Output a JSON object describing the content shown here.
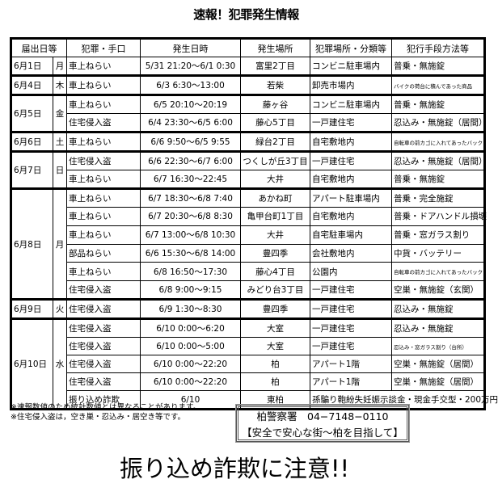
{
  "title": "速報！犯罪発生情報",
  "headers": [
    "届出日等",
    "犯罪・手口",
    "発生日時",
    "発生場所",
    "犯罪場所・分類等",
    "犯行手段方法等"
  ],
  "groups": [
    {
      "date": "6月1日",
      "day": "月",
      "rows": [
        [
          "車上ねらい",
          "5/31 21:20～6/1 0:30",
          "富里2丁目",
          "コンビニ駐車場内",
          "普乗・無施錠"
        ]
      ]
    },
    {
      "date": "6月4日",
      "day": "木",
      "rows": [
        [
          "車上ねらい",
          "6/3 6:30～13:00",
          "若柴",
          "卸売市場内",
          "バイクの荷台に積んであった商品"
        ]
      ]
    },
    {
      "date": "6月5日",
      "day": "金",
      "rows": [
        [
          "車上ねらい",
          "6/5 20:10～20:19",
          "藤ヶ谷",
          "コンビニ駐車場内",
          "普乗・無施錠"
        ],
        [
          "住宅侵入盗",
          "6/4 23:30～6/5 6:00",
          "藤心5丁目",
          "一戸建住宅",
          "忍込み・無施錠（居間）"
        ]
      ]
    },
    {
      "date": "6月6日",
      "day": "土",
      "rows": [
        [
          "車上ねらい",
          "6/6 9:50～6/5 9:55",
          "緑台2丁目",
          "自宅敷地内",
          "自転車の前カゴに入れてあったバック"
        ]
      ]
    },
    {
      "date": "6月7日",
      "day": "日",
      "rows": [
        [
          "住宅侵入盗",
          "6/6 22:30～6/7 6:00",
          "つくしが丘3丁目",
          "一戸建住宅",
          "忍込み・無施錠（居間）"
        ],
        [
          "車上ねらい",
          "6/7 16:30～22:45",
          "大井",
          "自宅敷地内",
          "普乗・無施錠"
        ]
      ]
    },
    {
      "date": "6月8日",
      "day": "月",
      "rows": [
        [
          "車上ねらい",
          "6/7 18:30～6/8 7:40",
          "あかね町",
          "アパート駐車場内",
          "普乗・完全施錠"
        ],
        [
          "車上ねらい",
          "6/7 20:30～6/8 8:30",
          "亀甲台町1丁目",
          "自宅敷地内",
          "普乗・ドアハンドル損壊"
        ],
        [
          "車上ねらい",
          "6/7 13:00～6/8 10:30",
          "大井",
          "自宅駐車場内",
          "普乗・窓ガラス割り"
        ],
        [
          "部品ねらい",
          "6/6 15:30～6/8 14:00",
          "豊四季",
          "会社敷地内",
          "中貨・バッテリー"
        ],
        [
          "車上ねらい",
          "6/8 16:50～17:30",
          "藤心4丁目",
          "公園内",
          "自転車の前カゴに入れてあったバック"
        ],
        [
          "住宅侵入盗",
          "6/8 9:00～9:15",
          "みどり台3丁目",
          "一戸建住宅",
          "空巣・無施錠（玄関）"
        ]
      ]
    },
    {
      "date": "6月9日",
      "day": "火",
      "rows": [
        [
          "住宅侵入盗",
          "6/9 1:30～8:30",
          "豊四季",
          "一戸建住宅",
          "忍込み・無施錠"
        ]
      ]
    },
    {
      "date": "6月10日",
      "day": "水",
      "rows": [
        [
          "住宅侵入盗",
          "6/10 0:00～6:20",
          "大室",
          "一戸建住宅",
          "忍込み・無施錠"
        ],
        [
          "住宅侵入盗",
          "6/10 0:00～5:00",
          "大室",
          "一戸建住宅",
          "忍込み・窓ガラス割り（台所）"
        ],
        [
          "住宅侵入盗",
          "6/10 0:00～22:20",
          "柏",
          "アパート1階",
          "空巣・無施錠（居間）"
        ],
        [
          "住宅侵入盗",
          "6/10 0:00～22:20",
          "柏",
          "アパート1階",
          "空巣・無施錠（居間）"
        ],
        [
          "振り込め詐欺",
          "6/10",
          "東柏",
          "孫騙り鞄紛失妊娠示談金・現金手交型・200万円"
        ]
      ]
    }
  ],
  "notes": [
    "※速報数値のため統計数値とは異なることがあります。",
    "※住宅侵入盗は，空き巣・忍込み・居空き等です。"
  ],
  "contact": {
    "station": "柏警察署　04−7148−0110",
    "slogan": "【安全で安心な街～柏を目指して】"
  },
  "warning": "振り込め詐欺に注意!!"
}
